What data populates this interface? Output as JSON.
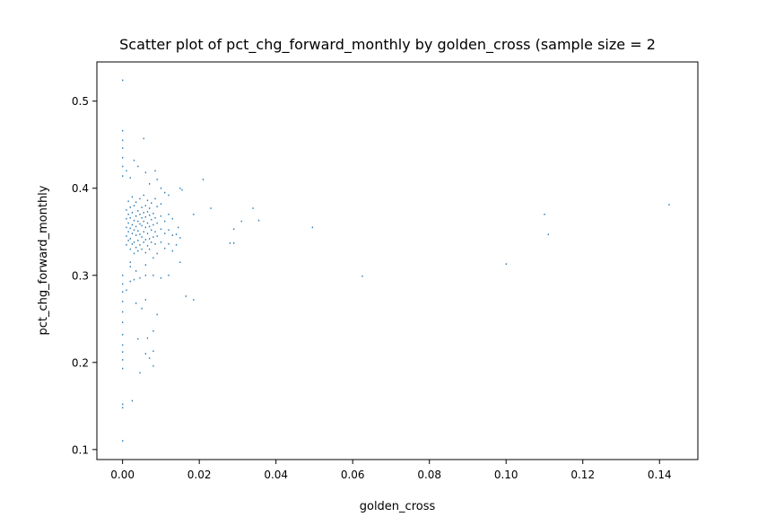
{
  "chart_data": {
    "type": "scatter",
    "title": "Scatter plot of pct_chg_forward_monthly by golden_cross (sample size = 2",
    "xlabel": "golden_cross",
    "ylabel": "pct_chg_forward_monthly",
    "xlim": [
      -0.0067,
      0.15
    ],
    "ylim": [
      0.0885,
      0.545
    ],
    "xticks": [
      0.0,
      0.02,
      0.04,
      0.06,
      0.08,
      0.1,
      0.12,
      0.14
    ],
    "xtick_labels": [
      "0.00",
      "0.02",
      "0.04",
      "0.06",
      "0.08",
      "0.10",
      "0.12",
      "0.14"
    ],
    "yticks": [
      0.1,
      0.2,
      0.3,
      0.4,
      0.5
    ],
    "ytick_labels": [
      "0.1",
      "0.2",
      "0.3",
      "0.4",
      "0.5"
    ],
    "grid": false,
    "marker_color": "#1f77b4",
    "series": [
      {
        "points": [
          [
            0.0,
            0.524
          ],
          [
            0.0,
            0.466
          ],
          [
            0.0,
            0.455
          ],
          [
            0.0,
            0.446
          ],
          [
            0.0,
            0.435
          ],
          [
            0.0,
            0.425
          ],
          [
            0.0,
            0.414
          ],
          [
            0.0,
            0.3
          ],
          [
            0.0,
            0.29
          ],
          [
            0.0,
            0.281
          ],
          [
            0.0,
            0.27
          ],
          [
            0.0,
            0.258
          ],
          [
            0.0,
            0.246
          ],
          [
            0.0,
            0.232
          ],
          [
            0.0,
            0.22
          ],
          [
            0.0,
            0.212
          ],
          [
            0.0,
            0.203
          ],
          [
            0.0,
            0.193
          ],
          [
            0.0,
            0.152
          ],
          [
            0.0,
            0.148
          ],
          [
            0.0,
            0.11
          ],
          [
            0.001,
            0.42
          ],
          [
            0.002,
            0.412
          ],
          [
            0.003,
            0.432
          ],
          [
            0.004,
            0.425
          ],
          [
            0.0055,
            0.457
          ],
          [
            0.006,
            0.418
          ],
          [
            0.007,
            0.405
          ],
          [
            0.0085,
            0.42
          ],
          [
            0.009,
            0.41
          ],
          [
            0.01,
            0.4
          ],
          [
            0.011,
            0.395
          ],
          [
            0.012,
            0.392
          ],
          [
            0.015,
            0.4
          ],
          [
            0.0155,
            0.398
          ],
          [
            0.021,
            0.41
          ],
          [
            0.023,
            0.377
          ],
          [
            0.0185,
            0.37
          ],
          [
            0.028,
            0.337
          ],
          [
            0.029,
            0.337
          ],
          [
            0.029,
            0.353
          ],
          [
            0.031,
            0.362
          ],
          [
            0.034,
            0.377
          ],
          [
            0.0355,
            0.363
          ],
          [
            0.0495,
            0.355
          ],
          [
            0.0625,
            0.299
          ],
          [
            0.1,
            0.313
          ],
          [
            0.11,
            0.37
          ],
          [
            0.111,
            0.347
          ],
          [
            0.1425,
            0.381
          ],
          [
            0.0025,
            0.156
          ],
          [
            0.0045,
            0.188
          ],
          [
            0.006,
            0.21
          ],
          [
            0.007,
            0.205
          ],
          [
            0.008,
            0.213
          ],
          [
            0.008,
            0.196
          ],
          [
            0.004,
            0.227
          ],
          [
            0.0065,
            0.228
          ],
          [
            0.008,
            0.236
          ],
          [
            0.009,
            0.255
          ],
          [
            0.005,
            0.262
          ],
          [
            0.0035,
            0.268
          ],
          [
            0.006,
            0.272
          ],
          [
            0.001,
            0.283
          ],
          [
            0.002,
            0.293
          ],
          [
            0.003,
            0.295
          ],
          [
            0.0045,
            0.297
          ],
          [
            0.006,
            0.3
          ],
          [
            0.008,
            0.3
          ],
          [
            0.01,
            0.297
          ],
          [
            0.012,
            0.3
          ],
          [
            0.015,
            0.315
          ],
          [
            0.0165,
            0.276
          ],
          [
            0.0185,
            0.272
          ],
          [
            0.014,
            0.347
          ],
          [
            0.002,
            0.31
          ],
          [
            0.006,
            0.312
          ],
          [
            0.0035,
            0.305
          ],
          [
            0.002,
            0.315
          ],
          [
            0.001,
            0.335
          ],
          [
            0.001,
            0.345
          ],
          [
            0.001,
            0.355
          ],
          [
            0.001,
            0.365
          ],
          [
            0.001,
            0.375
          ],
          [
            0.0015,
            0.34
          ],
          [
            0.0015,
            0.35
          ],
          [
            0.0015,
            0.36
          ],
          [
            0.0015,
            0.37
          ],
          [
            0.0015,
            0.385
          ],
          [
            0.002,
            0.33
          ],
          [
            0.002,
            0.342
          ],
          [
            0.002,
            0.354
          ],
          [
            0.002,
            0.366
          ],
          [
            0.002,
            0.378
          ],
          [
            0.0025,
            0.336
          ],
          [
            0.0025,
            0.348
          ],
          [
            0.0025,
            0.358
          ],
          [
            0.0025,
            0.372
          ],
          [
            0.0025,
            0.39
          ],
          [
            0.003,
            0.325
          ],
          [
            0.003,
            0.338
          ],
          [
            0.003,
            0.352
          ],
          [
            0.003,
            0.363
          ],
          [
            0.003,
            0.38
          ],
          [
            0.0035,
            0.332
          ],
          [
            0.0035,
            0.346
          ],
          [
            0.0035,
            0.356
          ],
          [
            0.0035,
            0.368
          ],
          [
            0.0035,
            0.384
          ],
          [
            0.004,
            0.328
          ],
          [
            0.004,
            0.34
          ],
          [
            0.004,
            0.351
          ],
          [
            0.004,
            0.362
          ],
          [
            0.004,
            0.374
          ],
          [
            0.0045,
            0.335
          ],
          [
            0.0045,
            0.347
          ],
          [
            0.0045,
            0.359
          ],
          [
            0.0045,
            0.37
          ],
          [
            0.0045,
            0.388
          ],
          [
            0.005,
            0.33
          ],
          [
            0.005,
            0.344
          ],
          [
            0.005,
            0.357
          ],
          [
            0.005,
            0.366
          ],
          [
            0.005,
            0.378
          ],
          [
            0.0055,
            0.338
          ],
          [
            0.0055,
            0.35
          ],
          [
            0.0055,
            0.362
          ],
          [
            0.0055,
            0.372
          ],
          [
            0.0055,
            0.392
          ],
          [
            0.006,
            0.326
          ],
          [
            0.006,
            0.341
          ],
          [
            0.006,
            0.355
          ],
          [
            0.006,
            0.367
          ],
          [
            0.006,
            0.38
          ],
          [
            0.0065,
            0.334
          ],
          [
            0.0065,
            0.348
          ],
          [
            0.0065,
            0.36
          ],
          [
            0.0065,
            0.373
          ],
          [
            0.0065,
            0.386
          ],
          [
            0.007,
            0.33
          ],
          [
            0.007,
            0.342
          ],
          [
            0.007,
            0.356
          ],
          [
            0.007,
            0.369
          ],
          [
            0.007,
            0.377
          ],
          [
            0.0075,
            0.338
          ],
          [
            0.0075,
            0.352
          ],
          [
            0.0075,
            0.364
          ],
          [
            0.0075,
            0.383
          ],
          [
            0.008,
            0.32
          ],
          [
            0.008,
            0.344
          ],
          [
            0.008,
            0.358
          ],
          [
            0.008,
            0.371
          ],
          [
            0.0085,
            0.336
          ],
          [
            0.0085,
            0.35
          ],
          [
            0.0085,
            0.366
          ],
          [
            0.0085,
            0.388
          ],
          [
            0.009,
            0.325
          ],
          [
            0.009,
            0.345
          ],
          [
            0.009,
            0.36
          ],
          [
            0.009,
            0.379
          ],
          [
            0.01,
            0.338
          ],
          [
            0.01,
            0.353
          ],
          [
            0.01,
            0.368
          ],
          [
            0.01,
            0.382
          ],
          [
            0.011,
            0.331
          ],
          [
            0.011,
            0.348
          ],
          [
            0.011,
            0.362
          ],
          [
            0.012,
            0.336
          ],
          [
            0.012,
            0.352
          ],
          [
            0.012,
            0.37
          ],
          [
            0.013,
            0.328
          ],
          [
            0.013,
            0.346
          ],
          [
            0.013,
            0.365
          ],
          [
            0.014,
            0.335
          ],
          [
            0.0145,
            0.355
          ],
          [
            0.015,
            0.343
          ]
        ]
      }
    ]
  }
}
